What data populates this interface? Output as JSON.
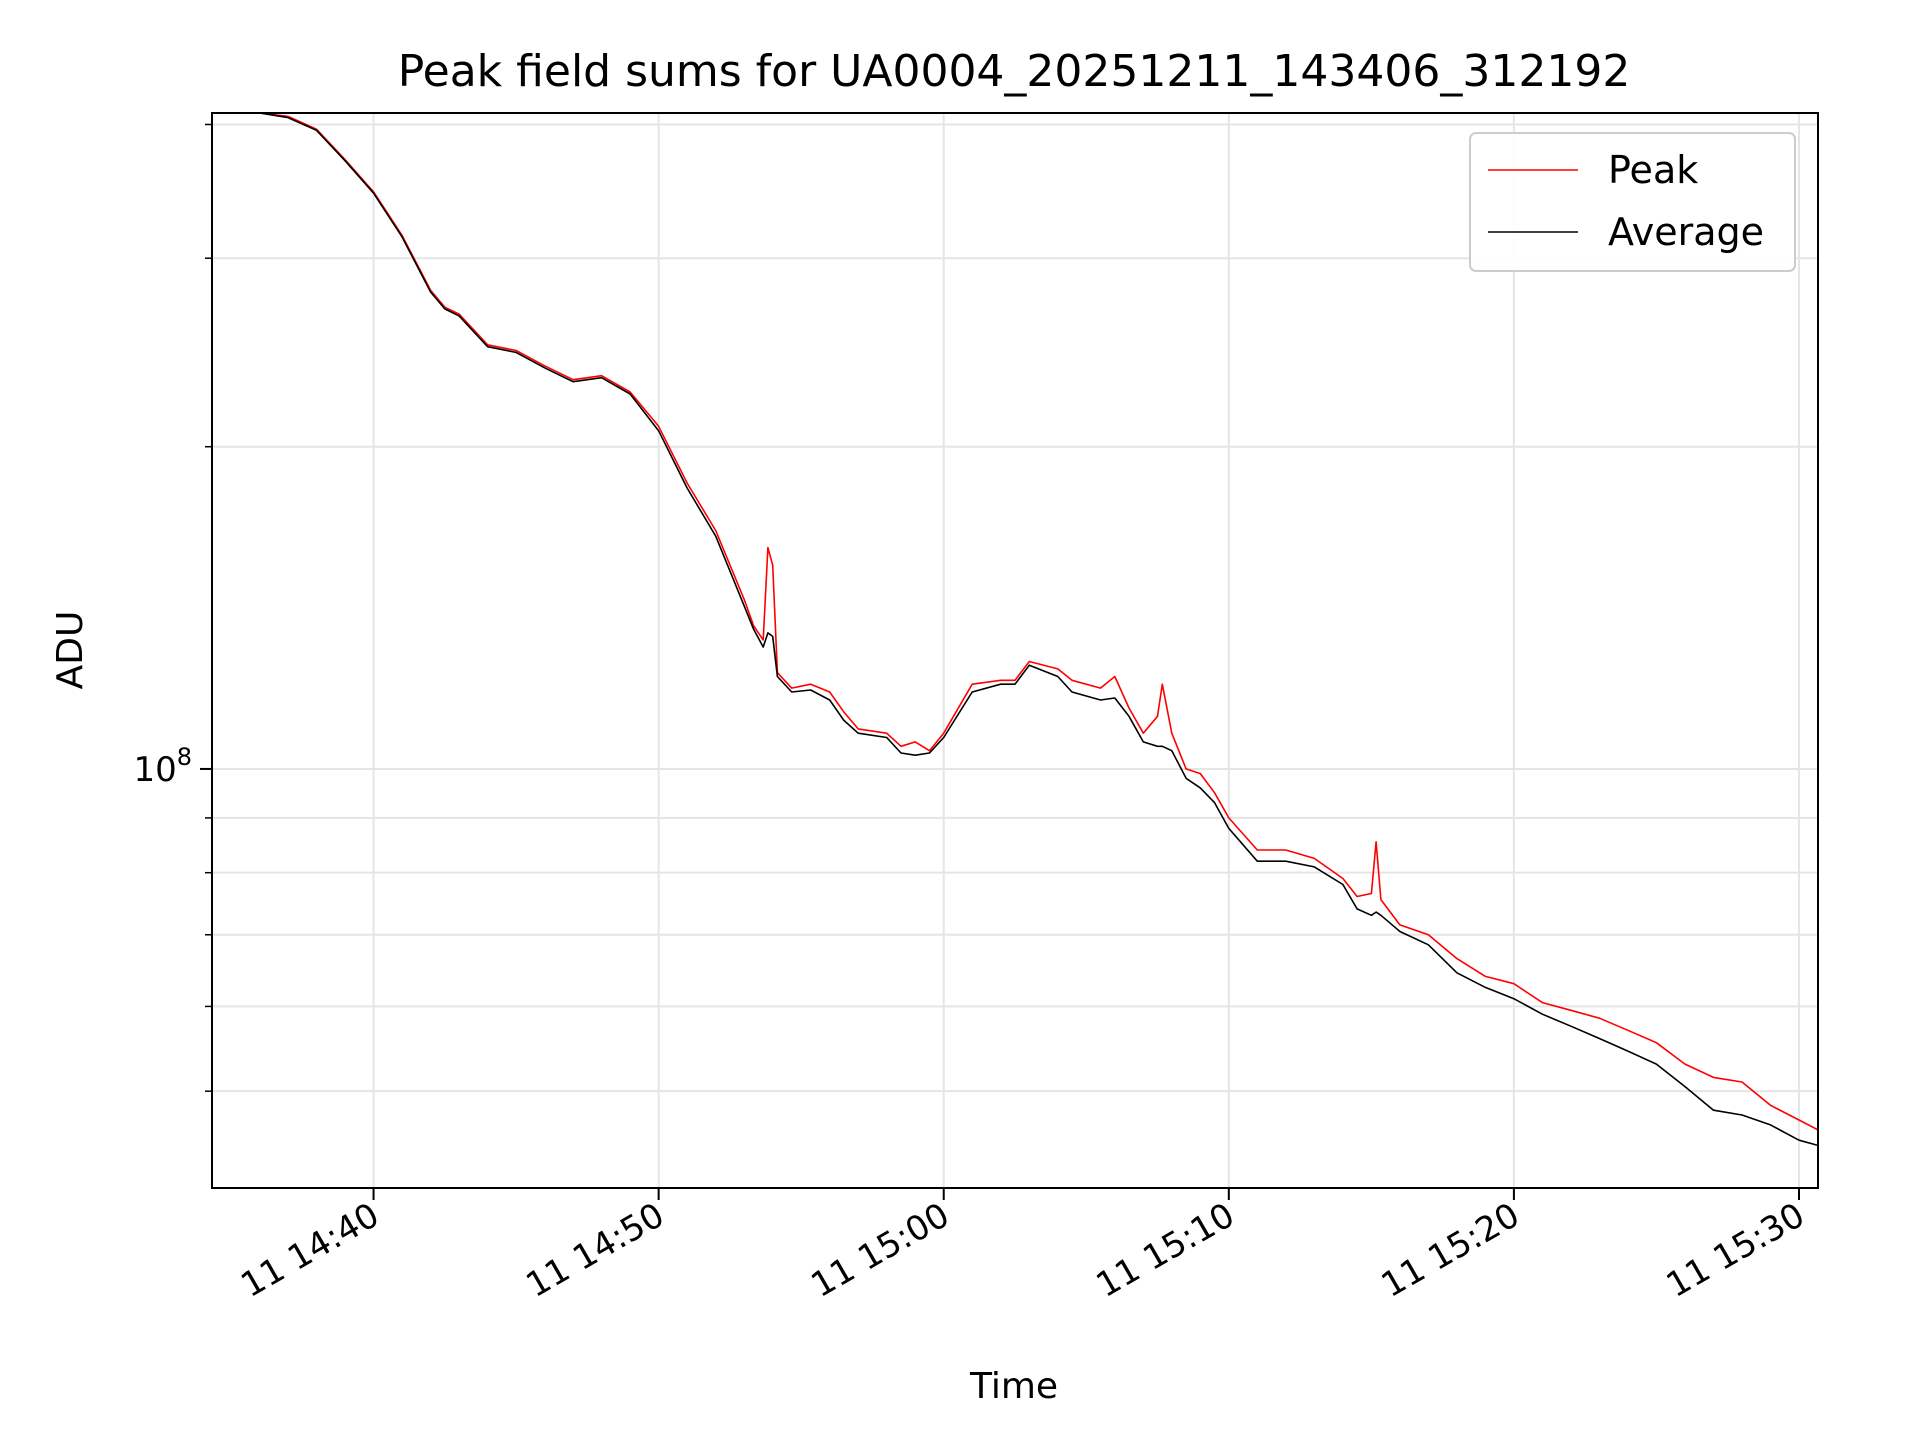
{
  "chart_data": {
    "type": "line",
    "title": "Peak field sums for UA0004_20251211_143406_312192",
    "xlabel": "Time",
    "ylabel": "ADU",
    "x_scale": "time",
    "y_scale": "log",
    "xlim": [
      "2025-12-11 14:34:20",
      "2025-12-11 15:30:40"
    ],
    "ylim": [
      40600000,
      410000000
    ],
    "x_ticks": [
      "2025-12-11 14:40",
      "2025-12-11 14:50",
      "2025-12-11 15:00",
      "2025-12-11 15:10",
      "2025-12-11 15:20",
      "2025-12-11 15:30"
    ],
    "x_tick_labels": [
      "11 14:40",
      "11 14:50",
      "11 15:00",
      "11 15:10",
      "11 15:20",
      "11 15:30"
    ],
    "y_major_ticks": [
      100000000
    ],
    "y_major_tick_label": {
      "base": "10",
      "exponent": "8"
    },
    "y_minor_ticks": [
      50000000,
      60000000,
      70000000,
      80000000,
      90000000,
      200000000,
      300000000,
      400000000
    ],
    "grid": true,
    "legend": "top-right",
    "colors": {
      "peak": "#ff0000",
      "average": "#000000",
      "grid": "#e5e5e5"
    },
    "series": [
      {
        "name": "Peak",
        "color": "#ff0000",
        "points": [
          [
            "2025-12-11 14:34:20",
            410000000
          ],
          [
            "2025-12-11 14:36:00",
            410000000
          ],
          [
            "2025-12-11 14:37:00",
            407000000
          ],
          [
            "2025-12-11 14:38:00",
            396000000
          ],
          [
            "2025-12-11 14:39:00",
            371000000
          ],
          [
            "2025-12-11 14:40:00",
            346000000
          ],
          [
            "2025-12-11 14:41:00",
            315000000
          ],
          [
            "2025-12-11 14:42:00",
            280000000
          ],
          [
            "2025-12-11 14:42:30",
            270000000
          ],
          [
            "2025-12-11 14:43:00",
            266000000
          ],
          [
            "2025-12-11 14:44:00",
            249000000
          ],
          [
            "2025-12-11 14:45:00",
            246000000
          ],
          [
            "2025-12-11 14:46:00",
            238000000
          ],
          [
            "2025-12-11 14:47:00",
            231000000
          ],
          [
            "2025-12-11 14:48:00",
            233000000
          ],
          [
            "2025-12-11 14:49:00",
            225000000
          ],
          [
            "2025-12-11 14:50:00",
            209000000
          ],
          [
            "2025-12-11 14:51:00",
            185000000
          ],
          [
            "2025-12-11 14:52:00",
            167000000
          ],
          [
            "2025-12-11 14:53:00",
            144000000
          ],
          [
            "2025-12-11 14:53:20",
            136000000
          ],
          [
            "2025-12-11 14:53:40",
            132000000
          ],
          [
            "2025-12-11 14:53:50",
            161000000
          ],
          [
            "2025-12-11 14:54:00",
            155000000
          ],
          [
            "2025-12-11 14:54:10",
            123000000
          ],
          [
            "2025-12-11 14:54:40",
            119000000
          ],
          [
            "2025-12-11 14:55:20",
            120000000
          ],
          [
            "2025-12-11 14:56:00",
            118000000
          ],
          [
            "2025-12-11 14:56:30",
            113000000
          ],
          [
            "2025-12-11 14:57:00",
            109000000
          ],
          [
            "2025-12-11 14:58:00",
            108000000
          ],
          [
            "2025-12-11 14:58:30",
            105000000
          ],
          [
            "2025-12-11 14:59:00",
            106000000
          ],
          [
            "2025-12-11 14:59:30",
            104000000
          ],
          [
            "2025-12-11 15:00:00",
            108000000
          ],
          [
            "2025-12-11 15:01:00",
            120000000
          ],
          [
            "2025-12-11 15:02:00",
            121000000
          ],
          [
            "2025-12-11 15:02:30",
            121000000
          ],
          [
            "2025-12-11 15:03:00",
            126000000
          ],
          [
            "2025-12-11 15:04:00",
            124000000
          ],
          [
            "2025-12-11 15:04:30",
            121000000
          ],
          [
            "2025-12-11 15:05:30",
            119000000
          ],
          [
            "2025-12-11 15:06:00",
            122000000
          ],
          [
            "2025-12-11 15:06:30",
            114000000
          ],
          [
            "2025-12-11 15:07:00",
            108000000
          ],
          [
            "2025-12-11 15:07:30",
            112000000
          ],
          [
            "2025-12-11 15:07:40",
            120000000
          ],
          [
            "2025-12-11 15:08:00",
            108000000
          ],
          [
            "2025-12-11 15:08:30",
            100000000
          ],
          [
            "2025-12-11 15:09:00",
            99000000
          ],
          [
            "2025-12-11 15:09:30",
            95000000
          ],
          [
            "2025-12-11 15:10:00",
            90000000
          ],
          [
            "2025-12-11 15:11:00",
            84000000
          ],
          [
            "2025-12-11 15:12:00",
            84000000
          ],
          [
            "2025-12-11 15:13:00",
            82500000
          ],
          [
            "2025-12-11 15:14:00",
            79000000
          ],
          [
            "2025-12-11 15:14:30",
            76000000
          ],
          [
            "2025-12-11 15:15:00",
            76500000
          ],
          [
            "2025-12-11 15:15:10",
            85500000
          ],
          [
            "2025-12-11 15:15:20",
            75500000
          ],
          [
            "2025-12-11 15:16:00",
            71500000
          ],
          [
            "2025-12-11 15:17:00",
            70000000
          ],
          [
            "2025-12-11 15:18:00",
            66500000
          ],
          [
            "2025-12-11 15:19:00",
            64000000
          ],
          [
            "2025-12-11 15:20:00",
            63000000
          ],
          [
            "2025-12-11 15:21:00",
            60500000
          ],
          [
            "2025-12-11 15:22:00",
            59500000
          ],
          [
            "2025-12-11 15:23:00",
            58500000
          ],
          [
            "2025-12-11 15:24:00",
            57000000
          ],
          [
            "2025-12-11 15:25:00",
            55500000
          ],
          [
            "2025-12-11 15:26:00",
            53000000
          ],
          [
            "2025-12-11 15:27:00",
            51500000
          ],
          [
            "2025-12-11 15:28:00",
            51000000
          ],
          [
            "2025-12-11 15:29:00",
            48500000
          ],
          [
            "2025-12-11 15:30:00",
            47000000
          ],
          [
            "2025-12-11 15:30:40",
            46000000
          ]
        ]
      },
      {
        "name": "Average",
        "color": "#000000",
        "points": [
          [
            "2025-12-11 14:34:20",
            410000000
          ],
          [
            "2025-12-11 14:36:00",
            410000000
          ],
          [
            "2025-12-11 14:37:00",
            406000000
          ],
          [
            "2025-12-11 14:38:00",
            395000000
          ],
          [
            "2025-12-11 14:39:00",
            370000000
          ],
          [
            "2025-12-11 14:40:00",
            345000000
          ],
          [
            "2025-12-11 14:41:00",
            314000000
          ],
          [
            "2025-12-11 14:42:00",
            279000000
          ],
          [
            "2025-12-11 14:42:30",
            269000000
          ],
          [
            "2025-12-11 14:43:00",
            265000000
          ],
          [
            "2025-12-11 14:44:00",
            248000000
          ],
          [
            "2025-12-11 14:45:00",
            245000000
          ],
          [
            "2025-12-11 14:46:00",
            237000000
          ],
          [
            "2025-12-11 14:47:00",
            230000000
          ],
          [
            "2025-12-11 14:48:00",
            232000000
          ],
          [
            "2025-12-11 14:49:00",
            224000000
          ],
          [
            "2025-12-11 14:50:00",
            207000000
          ],
          [
            "2025-12-11 14:51:00",
            183000000
          ],
          [
            "2025-12-11 14:52:00",
            165000000
          ],
          [
            "2025-12-11 14:53:00",
            142000000
          ],
          [
            "2025-12-11 14:53:20",
            135000000
          ],
          [
            "2025-12-11 14:53:40",
            130000000
          ],
          [
            "2025-12-11 14:53:50",
            134000000
          ],
          [
            "2025-12-11 14:54:00",
            133000000
          ],
          [
            "2025-12-11 14:54:10",
            122000000
          ],
          [
            "2025-12-11 14:54:40",
            118000000
          ],
          [
            "2025-12-11 14:55:20",
            118500000
          ],
          [
            "2025-12-11 14:56:00",
            116000000
          ],
          [
            "2025-12-11 14:56:30",
            111000000
          ],
          [
            "2025-12-11 14:57:00",
            108000000
          ],
          [
            "2025-12-11 14:58:00",
            107000000
          ],
          [
            "2025-12-11 14:58:30",
            103500000
          ],
          [
            "2025-12-11 14:59:00",
            103000000
          ],
          [
            "2025-12-11 14:59:30",
            103500000
          ],
          [
            "2025-12-11 15:00:00",
            107000000
          ],
          [
            "2025-12-11 15:01:00",
            118000000
          ],
          [
            "2025-12-11 15:02:00",
            120000000
          ],
          [
            "2025-12-11 15:02:30",
            120000000
          ],
          [
            "2025-12-11 15:03:00",
            125000000
          ],
          [
            "2025-12-11 15:04:00",
            122000000
          ],
          [
            "2025-12-11 15:04:30",
            118000000
          ],
          [
            "2025-12-11 15:05:30",
            116000000
          ],
          [
            "2025-12-11 15:06:00",
            116500000
          ],
          [
            "2025-12-11 15:06:30",
            112000000
          ],
          [
            "2025-12-11 15:07:00",
            106000000
          ],
          [
            "2025-12-11 15:07:30",
            105000000
          ],
          [
            "2025-12-11 15:07:40",
            105000000
          ],
          [
            "2025-12-11 15:08:00",
            104000000
          ],
          [
            "2025-12-11 15:08:30",
            98000000
          ],
          [
            "2025-12-11 15:09:00",
            96000000
          ],
          [
            "2025-12-11 15:09:30",
            93000000
          ],
          [
            "2025-12-11 15:10:00",
            88000000
          ],
          [
            "2025-12-11 15:11:00",
            82000000
          ],
          [
            "2025-12-11 15:12:00",
            82000000
          ],
          [
            "2025-12-11 15:13:00",
            81000000
          ],
          [
            "2025-12-11 15:14:00",
            78000000
          ],
          [
            "2025-12-11 15:14:30",
            74000000
          ],
          [
            "2025-12-11 15:15:00",
            73000000
          ],
          [
            "2025-12-11 15:15:10",
            73500000
          ],
          [
            "2025-12-11 15:15:20",
            73000000
          ],
          [
            "2025-12-11 15:16:00",
            70500000
          ],
          [
            "2025-12-11 15:17:00",
            68500000
          ],
          [
            "2025-12-11 15:18:00",
            64500000
          ],
          [
            "2025-12-11 15:19:00",
            62500000
          ],
          [
            "2025-12-11 15:20:00",
            61000000
          ],
          [
            "2025-12-11 15:21:00",
            59000000
          ],
          [
            "2025-12-11 15:22:00",
            57500000
          ],
          [
            "2025-12-11 15:23:00",
            56000000
          ],
          [
            "2025-12-11 15:24:00",
            54500000
          ],
          [
            "2025-12-11 15:25:00",
            53000000
          ],
          [
            "2025-12-11 15:26:00",
            50500000
          ],
          [
            "2025-12-11 15:27:00",
            48000000
          ],
          [
            "2025-12-11 15:28:00",
            47500000
          ],
          [
            "2025-12-11 15:29:00",
            46500000
          ],
          [
            "2025-12-11 15:30:00",
            45000000
          ],
          [
            "2025-12-11 15:30:40",
            44500000
          ]
        ]
      }
    ]
  }
}
